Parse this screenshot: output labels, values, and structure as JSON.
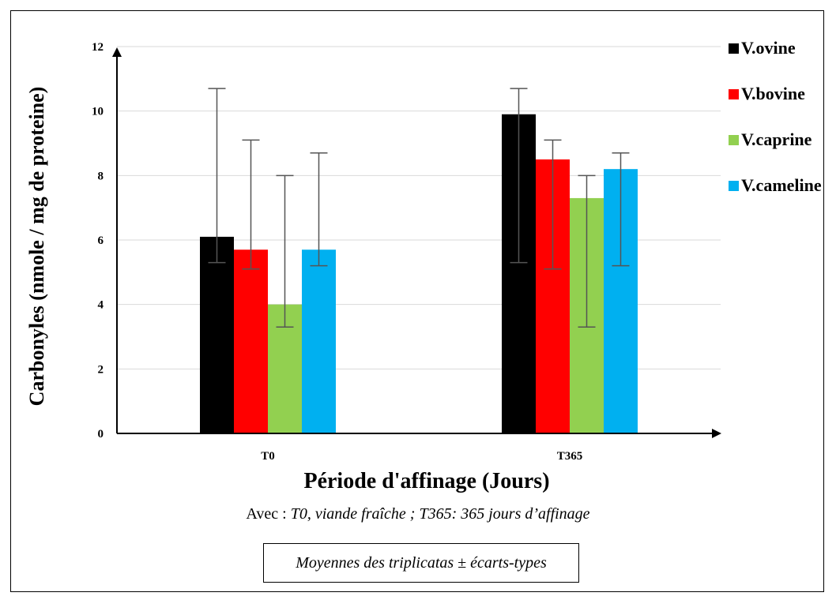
{
  "chart_data": {
    "type": "bar",
    "categories": [
      "T0",
      "T365"
    ],
    "series": [
      {
        "name": "V.ovine",
        "color": "#000000",
        "values": [
          6.1,
          9.9
        ],
        "error_low": [
          5.3,
          5.3
        ],
        "error_high": [
          10.7,
          10.7
        ]
      },
      {
        "name": "V.bovine",
        "color": "#ff0000",
        "values": [
          5.7,
          8.5
        ],
        "error_low": [
          5.1,
          5.1
        ],
        "error_high": [
          9.1,
          9.1
        ]
      },
      {
        "name": "V.caprine",
        "color": "#92d050",
        "values": [
          4.0,
          7.3
        ],
        "error_low": [
          3.3,
          3.3
        ],
        "error_high": [
          8.0,
          8.0
        ]
      },
      {
        "name": "V.cameline",
        "color": "#00b0f0",
        "values": [
          5.7,
          8.2
        ],
        "error_low": [
          5.2,
          5.2
        ],
        "error_high": [
          8.7,
          8.7
        ]
      }
    ],
    "ylim": [
      0,
      12
    ],
    "yticks": [
      0,
      2,
      4,
      6,
      8,
      10,
      12
    ],
    "xlabel": "Période d'affinage (Jours)",
    "ylabel": "Carbonyles (nmole / mg de proteine)",
    "grid": true,
    "legend_position": "top-right"
  },
  "note": {
    "prefix": "Avec : ",
    "text": "T0, viande fraîche ; T365: 365 jours d’affinage"
  },
  "footnote": "Moyennes des triplicatas ± écarts-types"
}
